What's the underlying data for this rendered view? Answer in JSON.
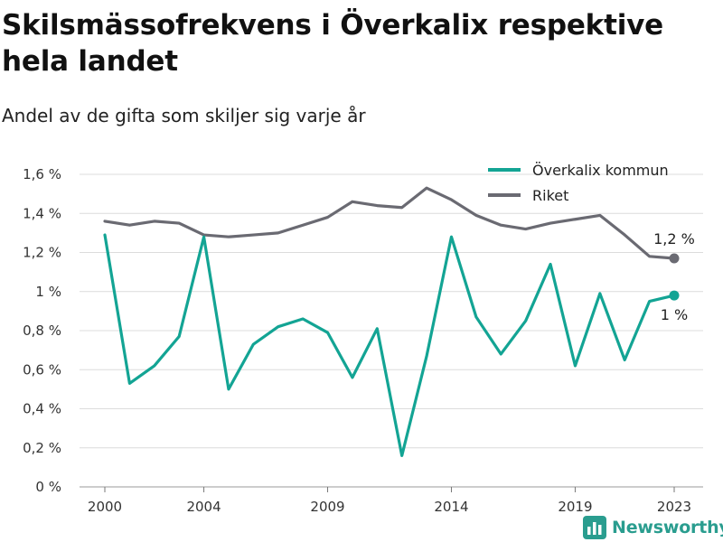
{
  "title": "Skilsmässofrekvens i Överkalix respektive hela landet",
  "subtitle": "Andel av de gifta som skiljer sig varje år",
  "brand": "Newsworthy",
  "colors": {
    "overkalix": "#13a494",
    "riket": "#6a6a72",
    "grid": "#dcdcdc",
    "brand": "#2a9d8f"
  },
  "chart_data": {
    "type": "line",
    "title": "Skilsmässofrekvens i Överkalix respektive hela landet",
    "subtitle": "Andel av de gifta som skiljer sig varje år",
    "xlabel": "",
    "ylabel": "",
    "x": [
      2000,
      2001,
      2002,
      2003,
      2004,
      2005,
      2006,
      2007,
      2008,
      2009,
      2010,
      2011,
      2012,
      2013,
      2014,
      2015,
      2016,
      2017,
      2018,
      2019,
      2020,
      2021,
      2022,
      2023
    ],
    "x_ticks": [
      "2000",
      "2004",
      "2009",
      "2014",
      "2019",
      "2023"
    ],
    "x_tick_values": [
      2000,
      2004,
      2009,
      2014,
      2019,
      2023
    ],
    "y_ticks": [
      "0 %",
      "0,2 %",
      "0,4 %",
      "0,6 %",
      "0,8 %",
      "1 %",
      "1,2 %",
      "1,4 %",
      "1,6 %"
    ],
    "y_tick_values": [
      0,
      0.2,
      0.4,
      0.6,
      0.8,
      1.0,
      1.2,
      1.4,
      1.6
    ],
    "ylim": [
      0,
      1.6
    ],
    "xlim": [
      2000,
      2023
    ],
    "grid": "horizontal",
    "legend_position": "top-right",
    "series": [
      {
        "name": "Överkalix kommun",
        "color": "#13a494",
        "values": [
          1.29,
          0.53,
          0.62,
          0.77,
          1.28,
          0.5,
          0.73,
          0.82,
          0.86,
          0.79,
          0.56,
          0.81,
          0.16,
          0.67,
          1.28,
          0.87,
          0.68,
          0.85,
          1.14,
          0.62,
          0.99,
          0.65,
          0.95,
          0.98
        ],
        "end_label": "1 %"
      },
      {
        "name": "Riket",
        "color": "#6a6a72",
        "values": [
          1.36,
          1.34,
          1.36,
          1.35,
          1.29,
          1.28,
          1.29,
          1.3,
          1.34,
          1.38,
          1.46,
          1.44,
          1.43,
          1.53,
          1.47,
          1.39,
          1.34,
          1.32,
          1.35,
          1.37,
          1.39,
          1.29,
          1.18,
          1.17
        ],
        "end_label": "1,2 %"
      }
    ]
  }
}
